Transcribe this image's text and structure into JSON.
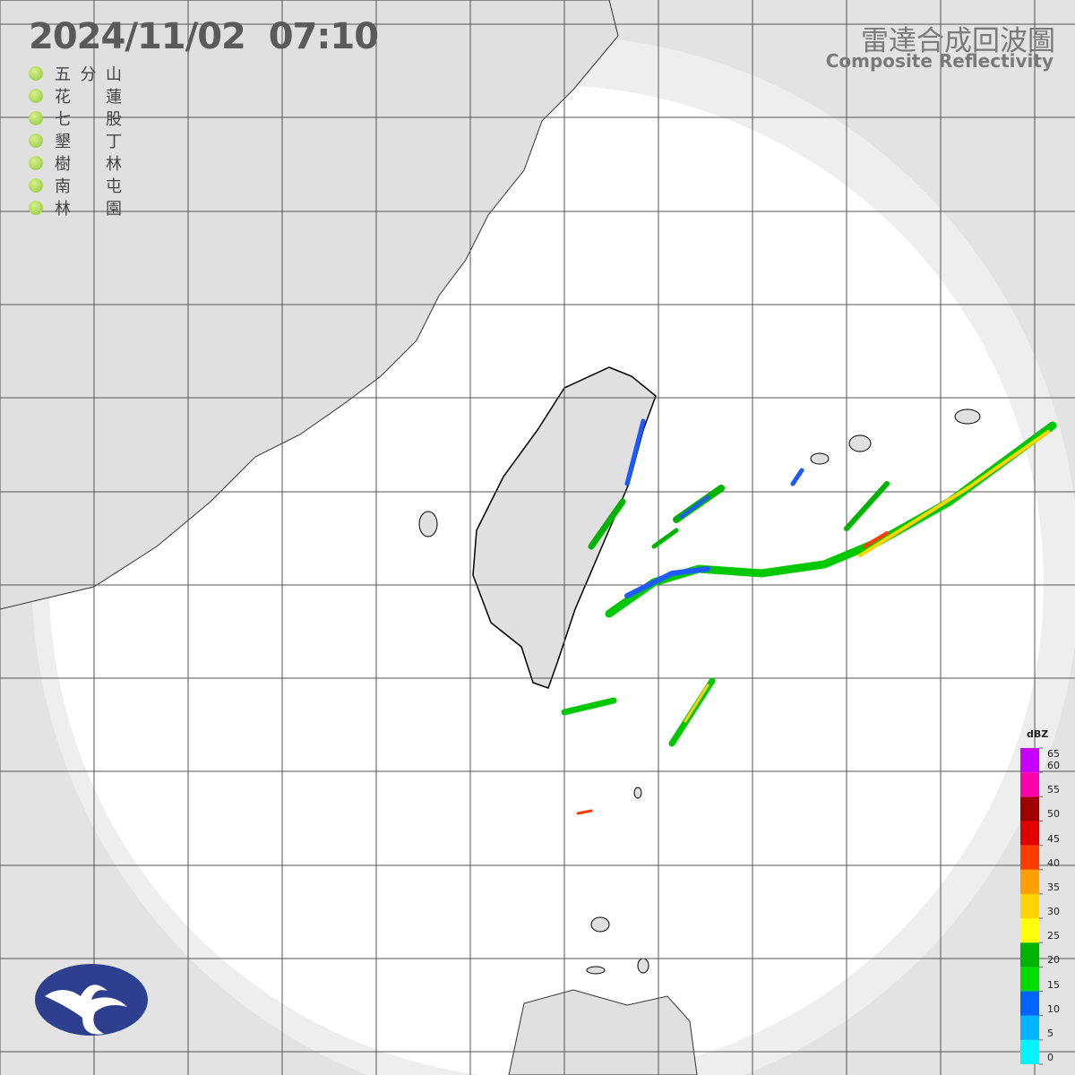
{
  "header": {
    "timestamp": "2024/11/02  07:10",
    "title": "雷達合成回波圖",
    "subtitle": "Composite Reflectivity"
  },
  "stations": [
    "五分山",
    "花蓮",
    "七股",
    "墾丁",
    "樹林",
    "南屯",
    "林園"
  ],
  "legend": {
    "unit": "dBZ",
    "ticks": [
      0,
      5,
      10,
      15,
      20,
      25,
      30,
      35,
      40,
      45,
      50,
      55,
      60,
      65
    ],
    "colors": [
      "#00f5ff",
      "#00b4ff",
      "#0064ff",
      "#00dc00",
      "#00b400",
      "#ffff00",
      "#ffd200",
      "#ffa000",
      "#ff3c00",
      "#e10000",
      "#a00000",
      "#ff00aa",
      "#c800ff"
    ]
  }
}
